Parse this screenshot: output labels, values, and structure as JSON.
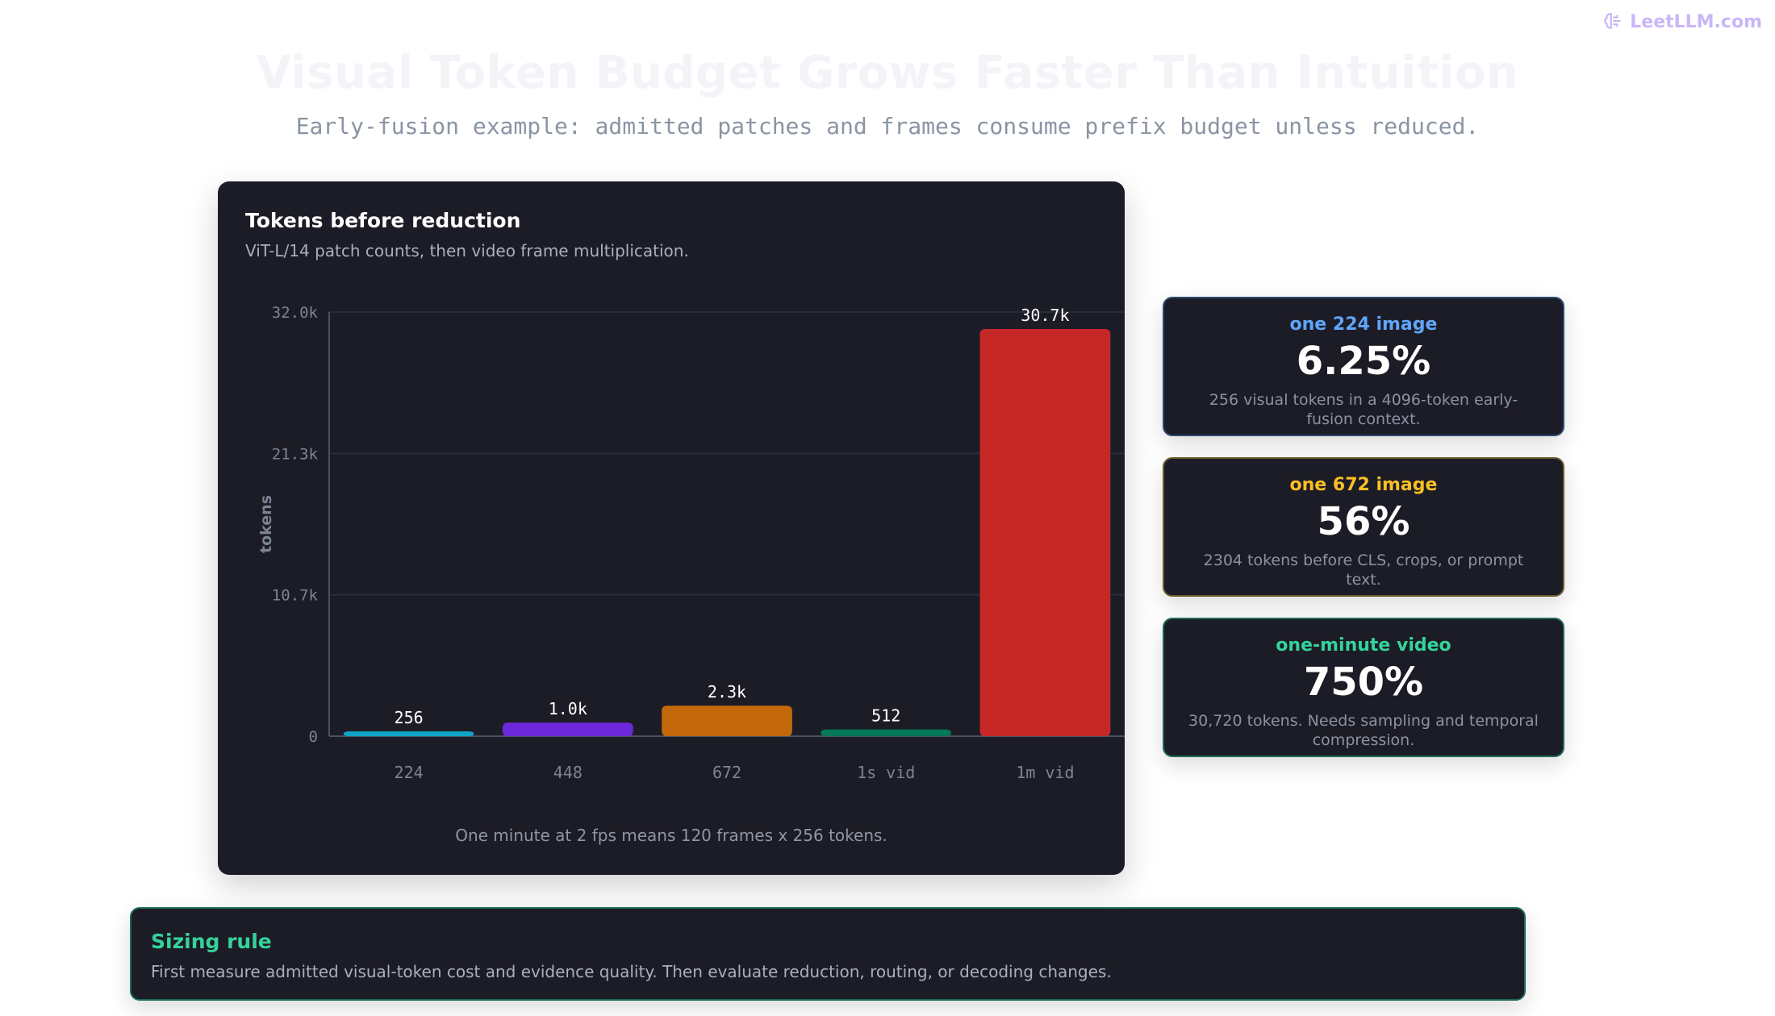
{
  "brand": {
    "name": "LeetLLM.com",
    "icon": "brain-icon",
    "color": "#c9b6f7"
  },
  "header": {
    "title": "Visual Token Budget Grows Faster Than Intuition",
    "subtitle": "Early-fusion example: admitted patches and frames consume prefix budget unless reduced."
  },
  "chart_card": {
    "title": "Tokens before reduction",
    "subtitle": "ViT-L/14 patch counts, then video frame multiplication.",
    "note": "One minute at 2 fps means 120 frames x 256 tokens."
  },
  "chart_data": {
    "type": "bar",
    "title": "Tokens before reduction",
    "subtitle": "ViT-L/14 patch counts, then video frame multiplication.",
    "xlabel": "",
    "ylabel": "tokens",
    "categories": [
      "224",
      "448",
      "672",
      "1s vid",
      "1m vid"
    ],
    "values": [
      256,
      1024,
      2304,
      512,
      30720
    ],
    "value_labels": [
      "256",
      "1.0k",
      "2.3k",
      "512",
      "30.7k"
    ],
    "colors": [
      "#0ea5c6",
      "#6d28d9",
      "#c2680a",
      "#047857",
      "#c62828"
    ],
    "ylim": [
      0,
      32000
    ],
    "yticks": [
      0,
      10667,
      21333,
      32000
    ],
    "ytick_labels": [
      "0",
      "10.7k",
      "21.3k",
      "32.0k"
    ],
    "grid": true,
    "legend": "none"
  },
  "stats": [
    {
      "label": "one 224 image",
      "value": "6.25%",
      "desc": "256 visual tokens in a 4096-token early-fusion context.",
      "accent": "#60a5fa",
      "border": "#2c4a6e"
    },
    {
      "label": "one 672 image",
      "value": "56%",
      "desc": "2304 tokens before CLS, crops, or prompt text.",
      "accent": "#fbbf24",
      "border": "#6b5a2c"
    },
    {
      "label": "one-minute video",
      "value": "750%",
      "desc": "30,720 tokens. Needs sampling and temporal compression.",
      "accent": "#34d399",
      "border": "#1e6b57"
    }
  ],
  "rule": {
    "title": "Sizing rule",
    "text": "First measure admitted visual-token cost and evidence quality. Then evaluate reduction, routing, or decoding changes."
  }
}
